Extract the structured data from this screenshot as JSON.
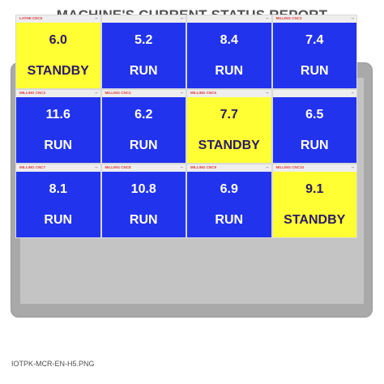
{
  "title": "MACHINE'S CURRENT STATUS REPORT",
  "caption": "IOTPK-MCR-EN-H5.PNG",
  "colors": {
    "run": "#2233ee",
    "standby": "#ffff33",
    "header_label": "#e03c3c"
  },
  "tiles": [
    {
      "label": "LATHE CNC5",
      "value": "6.0",
      "status": "STANDBY"
    },
    {
      "label": "",
      "value": "5.2",
      "status": "RUN"
    },
    {
      "label": "",
      "value": "8.4",
      "status": "RUN"
    },
    {
      "label": "MILLING CNC2",
      "value": "7.4",
      "status": "RUN"
    },
    {
      "label": "MILLING CNC3",
      "value": "11.6",
      "status": "RUN"
    },
    {
      "label": "MILLING CNC4",
      "value": "6.2",
      "status": "RUN"
    },
    {
      "label": "MILLING CNC5",
      "value": "7.7",
      "status": "STANDBY"
    },
    {
      "label": "",
      "value": "6.5",
      "status": "RUN"
    },
    {
      "label": "MILLING CNC7",
      "value": "8.1",
      "status": "RUN"
    },
    {
      "label": "MILLING CNC8",
      "value": "10.8",
      "status": "RUN"
    },
    {
      "label": "MILLING CNC9",
      "value": "6.9",
      "status": "RUN"
    },
    {
      "label": "MILLING CNC10",
      "value": "9.1",
      "status": "STANDBY"
    }
  ]
}
